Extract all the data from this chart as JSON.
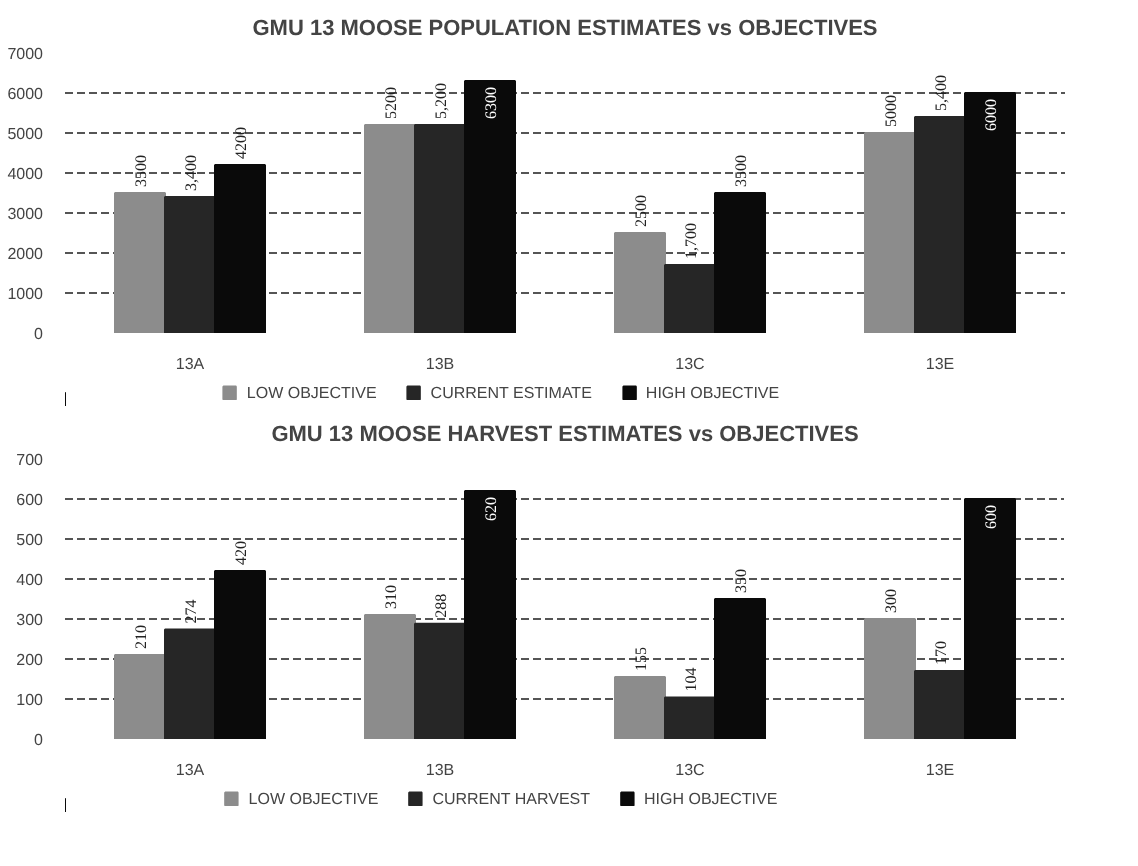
{
  "chart_data": [
    {
      "type": "bar",
      "title": "GMU 13 MOOSE POPULATION ESTIMATES vs OBJECTIVES",
      "categories": [
        "13A",
        "13B",
        "13C",
        "13E"
      ],
      "series": [
        {
          "name": "LOW OBJECTIVE",
          "color": "#8c8c8c",
          "values": [
            3500,
            5200,
            2500,
            5000
          ],
          "value_labels": [
            "3500",
            "5200",
            "2500",
            "5000"
          ]
        },
        {
          "name": "CURRENT ESTIMATE",
          "color": "#262626",
          "values": [
            3400,
            5200,
            1700,
            5400
          ],
          "value_labels": [
            "3,400",
            "5,200",
            "1,700",
            "5,400"
          ]
        },
        {
          "name": "HIGH OBJECTIVE",
          "color": "#0a0a0a",
          "values": [
            4200,
            6300,
            3500,
            6000
          ],
          "value_labels": [
            "4200",
            "6300",
            "3500",
            "6000"
          ]
        }
      ],
      "ylim": [
        0,
        7000
      ],
      "yticks": [
        0,
        1000,
        2000,
        3000,
        4000,
        5000,
        6000,
        7000
      ],
      "grid": "y",
      "legend": "bottom"
    },
    {
      "type": "bar",
      "title": "GMU 13 MOOSE HARVEST ESTIMATES vs OBJECTIVES",
      "categories": [
        "13A",
        "13B",
        "13C",
        "13E"
      ],
      "series": [
        {
          "name": "LOW OBJECTIVE",
          "color": "#8c8c8c",
          "values": [
            210,
            310,
            155,
            300
          ],
          "value_labels": [
            "210",
            "310",
            "155",
            "300"
          ]
        },
        {
          "name": "CURRENT HARVEST",
          "color": "#262626",
          "values": [
            274,
            288,
            104,
            170
          ],
          "value_labels": [
            "274",
            "288",
            "104",
            "170"
          ]
        },
        {
          "name": "HIGH OBJECTIVE",
          "color": "#0a0a0a",
          "values": [
            420,
            620,
            350,
            600
          ],
          "value_labels": [
            "420",
            "620",
            "350",
            "600"
          ]
        }
      ],
      "ylim": [
        0,
        700
      ],
      "yticks": [
        0,
        100,
        200,
        300,
        400,
        500,
        600,
        700
      ],
      "grid": "y",
      "legend": "bottom"
    }
  ]
}
